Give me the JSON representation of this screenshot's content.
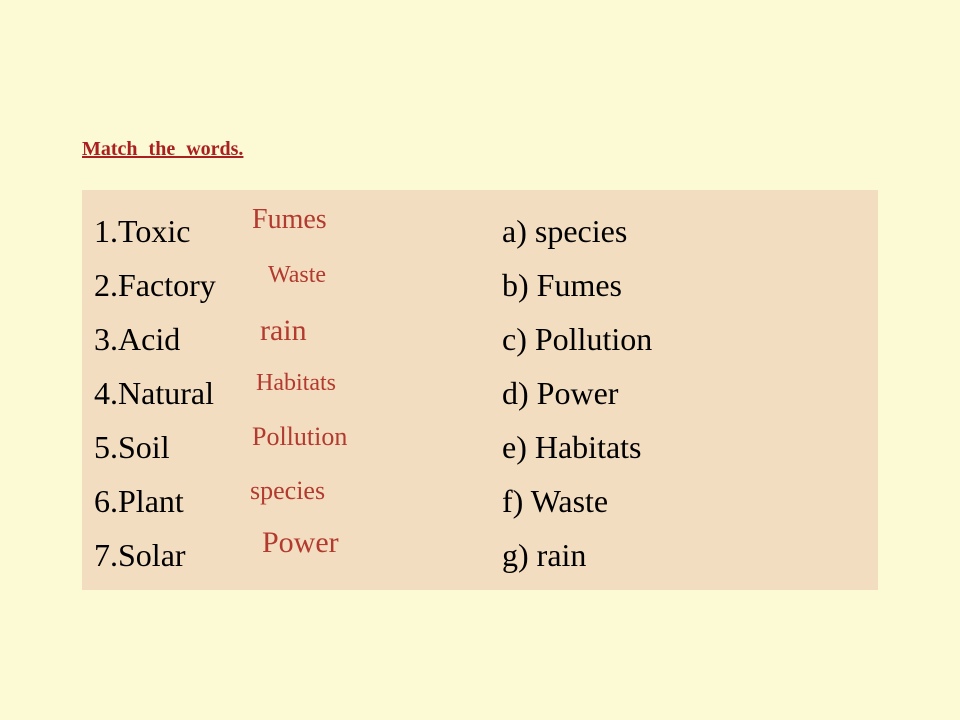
{
  "instruction": "Match  the words.",
  "panel": {
    "background_color": "#f3ddc0"
  },
  "page_background_color": "#fbfad4",
  "left_color": "#000000",
  "right_color": "#000000",
  "answer_color": "#b23a2e",
  "instruction_color": "#aa2020",
  "left": {
    "i1": "1.Toxic",
    "i2": "2.Factory",
    "i3": "3.Acid",
    "i4": "4.Natural",
    "i5": "5.Soil",
    "i6": "6.Plant",
    "i7": "7.Solar"
  },
  "right": {
    "i1": "a) species",
    "i2": "b) Fumes",
    "i3": "c) Pollution",
    "i4": "d) Power",
    "i5": "e) Habitats",
    "i6": "f) Waste",
    "i7": "g) rain"
  },
  "answers": {
    "a1": "Fumes",
    "a2": "Waste",
    "a3": "rain",
    "a4": "Habitats",
    "a5": "Pollution",
    "a6": "species",
    "a7": "Power"
  },
  "fontsize": {
    "body": 32,
    "instruction": 20
  }
}
